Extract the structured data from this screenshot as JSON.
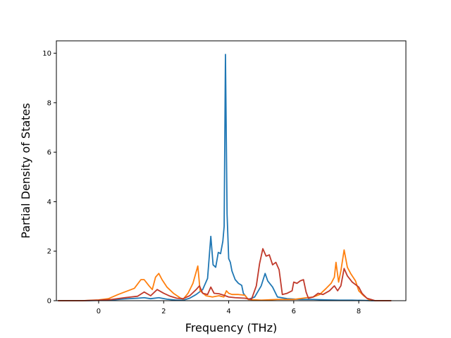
{
  "chart_data": {
    "type": "line",
    "title": "",
    "xlabel": "Frequency (THz)",
    "ylabel": "Partial Density of States",
    "xlim": [
      -1.3,
      9.45
    ],
    "ylim": [
      0,
      10.5
    ],
    "xticks": [
      0,
      2,
      4,
      6,
      8
    ],
    "yticks": [
      0,
      2,
      4,
      6,
      8,
      10
    ],
    "xtick_labels": [
      "0",
      "2",
      "4",
      "6",
      "8"
    ],
    "ytick_labels": [
      "0",
      "2",
      "4",
      "6",
      "8",
      "10"
    ],
    "grid": false,
    "series": [
      {
        "color": "#1f77b4",
        "points": [
          [
            -1.25,
            0
          ],
          [
            -0.5,
            0
          ],
          [
            0,
            0.01
          ],
          [
            0.4,
            0.03
          ],
          [
            0.8,
            0.07
          ],
          [
            1.2,
            0.1
          ],
          [
            1.4,
            0.12
          ],
          [
            1.6,
            0.08
          ],
          [
            1.85,
            0.12
          ],
          [
            2.1,
            0.06
          ],
          [
            2.4,
            0.02
          ],
          [
            2.6,
            0.02
          ],
          [
            2.8,
            0.1
          ],
          [
            3.0,
            0.25
          ],
          [
            3.2,
            0.45
          ],
          [
            3.35,
            0.9
          ],
          [
            3.45,
            2.6
          ],
          [
            3.52,
            1.45
          ],
          [
            3.6,
            1.35
          ],
          [
            3.68,
            1.95
          ],
          [
            3.75,
            1.9
          ],
          [
            3.82,
            2.4
          ],
          [
            3.86,
            3.0
          ],
          [
            3.9,
            9.95
          ],
          [
            3.95,
            3.5
          ],
          [
            4.0,
            1.7
          ],
          [
            4.05,
            1.55
          ],
          [
            4.1,
            1.2
          ],
          [
            4.2,
            0.85
          ],
          [
            4.3,
            0.7
          ],
          [
            4.4,
            0.62
          ],
          [
            4.45,
            0.3
          ],
          [
            4.6,
            0.05
          ],
          [
            4.8,
            0.15
          ],
          [
            5.0,
            0.6
          ],
          [
            5.12,
            1.1
          ],
          [
            5.2,
            0.8
          ],
          [
            5.35,
            0.55
          ],
          [
            5.5,
            0.15
          ],
          [
            5.8,
            0.08
          ],
          [
            6.2,
            0.05
          ],
          [
            6.6,
            0.05
          ],
          [
            7.0,
            0.03
          ],
          [
            7.4,
            0.02
          ],
          [
            7.8,
            0.02
          ],
          [
            8.2,
            0.01
          ],
          [
            8.4,
            0
          ],
          [
            9.0,
            0
          ]
        ]
      },
      {
        "color": "#ff7f0e",
        "points": [
          [
            -1.25,
            0
          ],
          [
            -0.5,
            0
          ],
          [
            0,
            0.03
          ],
          [
            0.3,
            0.08
          ],
          [
            0.6,
            0.25
          ],
          [
            0.9,
            0.4
          ],
          [
            1.1,
            0.5
          ],
          [
            1.3,
            0.85
          ],
          [
            1.4,
            0.85
          ],
          [
            1.55,
            0.6
          ],
          [
            1.65,
            0.45
          ],
          [
            1.75,
            0.95
          ],
          [
            1.85,
            1.1
          ],
          [
            1.95,
            0.85
          ],
          [
            2.1,
            0.55
          ],
          [
            2.3,
            0.3
          ],
          [
            2.5,
            0.12
          ],
          [
            2.6,
            0.06
          ],
          [
            2.75,
            0.3
          ],
          [
            2.9,
            0.7
          ],
          [
            3.05,
            1.4
          ],
          [
            3.12,
            0.4
          ],
          [
            3.3,
            0.2
          ],
          [
            3.5,
            0.15
          ],
          [
            3.7,
            0.2
          ],
          [
            3.85,
            0.15
          ],
          [
            3.93,
            0.4
          ],
          [
            4.0,
            0.3
          ],
          [
            4.1,
            0.25
          ],
          [
            4.3,
            0.25
          ],
          [
            4.5,
            0.22
          ],
          [
            4.6,
            0.05
          ],
          [
            5.0,
            0.02
          ],
          [
            5.5,
            0.05
          ],
          [
            6.0,
            0.05
          ],
          [
            6.4,
            0.12
          ],
          [
            6.6,
            0.15
          ],
          [
            6.8,
            0.25
          ],
          [
            7.0,
            0.5
          ],
          [
            7.15,
            0.7
          ],
          [
            7.25,
            0.95
          ],
          [
            7.3,
            1.55
          ],
          [
            7.38,
            0.75
          ],
          [
            7.45,
            1.2
          ],
          [
            7.55,
            2.05
          ],
          [
            7.65,
            1.35
          ],
          [
            7.75,
            1.1
          ],
          [
            7.9,
            0.8
          ],
          [
            8.0,
            0.4
          ],
          [
            8.15,
            0.2
          ],
          [
            8.3,
            0.05
          ],
          [
            8.5,
            0
          ],
          [
            9.0,
            0
          ]
        ]
      },
      {
        "color": "#c0392b",
        "points": [
          [
            -1.25,
            0
          ],
          [
            -0.5,
            0
          ],
          [
            0,
            0.02
          ],
          [
            0.4,
            0.05
          ],
          [
            0.8,
            0.12
          ],
          [
            1.2,
            0.18
          ],
          [
            1.4,
            0.35
          ],
          [
            1.6,
            0.2
          ],
          [
            1.8,
            0.45
          ],
          [
            2.0,
            0.3
          ],
          [
            2.2,
            0.18
          ],
          [
            2.4,
            0.1
          ],
          [
            2.6,
            0.08
          ],
          [
            2.8,
            0.2
          ],
          [
            3.0,
            0.45
          ],
          [
            3.1,
            0.6
          ],
          [
            3.2,
            0.3
          ],
          [
            3.35,
            0.25
          ],
          [
            3.45,
            0.55
          ],
          [
            3.55,
            0.3
          ],
          [
            3.7,
            0.28
          ],
          [
            3.85,
            0.22
          ],
          [
            4.0,
            0.15
          ],
          [
            4.2,
            0.12
          ],
          [
            4.5,
            0.1
          ],
          [
            4.7,
            0.05
          ],
          [
            4.85,
            0.6
          ],
          [
            4.95,
            1.5
          ],
          [
            5.05,
            2.1
          ],
          [
            5.15,
            1.8
          ],
          [
            5.25,
            1.85
          ],
          [
            5.35,
            1.45
          ],
          [
            5.45,
            1.55
          ],
          [
            5.55,
            1.25
          ],
          [
            5.65,
            0.25
          ],
          [
            5.8,
            0.3
          ],
          [
            5.95,
            0.4
          ],
          [
            6.0,
            0.75
          ],
          [
            6.1,
            0.7
          ],
          [
            6.2,
            0.8
          ],
          [
            6.3,
            0.85
          ],
          [
            6.38,
            0.35
          ],
          [
            6.45,
            0.1
          ],
          [
            6.6,
            0.15
          ],
          [
            6.75,
            0.3
          ],
          [
            6.9,
            0.25
          ],
          [
            7.1,
            0.4
          ],
          [
            7.25,
            0.6
          ],
          [
            7.35,
            0.4
          ],
          [
            7.45,
            0.6
          ],
          [
            7.55,
            1.3
          ],
          [
            7.65,
            1.0
          ],
          [
            7.8,
            0.75
          ],
          [
            8.0,
            0.55
          ],
          [
            8.1,
            0.3
          ],
          [
            8.25,
            0.1
          ],
          [
            8.5,
            0
          ],
          [
            9.0,
            0
          ]
        ]
      }
    ]
  }
}
